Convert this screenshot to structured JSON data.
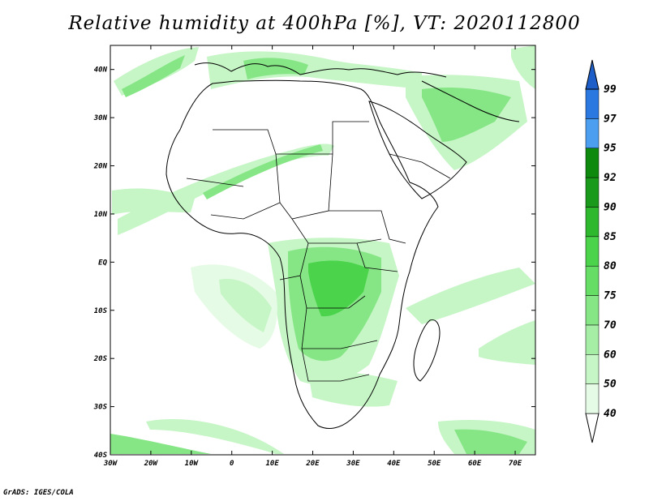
{
  "title": "Relative humidity at 400hPa [%], VT: 2020112800",
  "credit": "GrADS: IGES/COLA",
  "map": {
    "lon_range": [
      -30,
      75
    ],
    "lat_range": [
      -40,
      45
    ],
    "x_ticks": [
      "30W",
      "20W",
      "10W",
      "0",
      "10E",
      "20E",
      "30E",
      "40E",
      "50E",
      "60E",
      "70E"
    ],
    "y_ticks": [
      "40S",
      "30S",
      "20S",
      "10S",
      "EQ",
      "10N",
      "20N",
      "30N",
      "40N"
    ],
    "variable": "relative humidity",
    "level": "400hPa",
    "units": "%"
  },
  "colorbar": {
    "levels": [
      "40",
      "50",
      "60",
      "70",
      "75",
      "80",
      "85",
      "90",
      "92",
      "95",
      "97",
      "99"
    ],
    "colors": [
      "#ffffff",
      "#e6fbe6",
      "#c6f5c6",
      "#a6eea6",
      "#86e686",
      "#66de66",
      "#4bd44b",
      "#2db82d",
      "#1a9a1a",
      "#0d8a0d",
      "#4c9ef0",
      "#2a78e0",
      "#1e5ec8"
    ]
  },
  "colors": {
    "coast": "#000000",
    "field_light": "#c6f5c6",
    "field_mid": "#86e686",
    "field_strong": "#4bd44b"
  }
}
